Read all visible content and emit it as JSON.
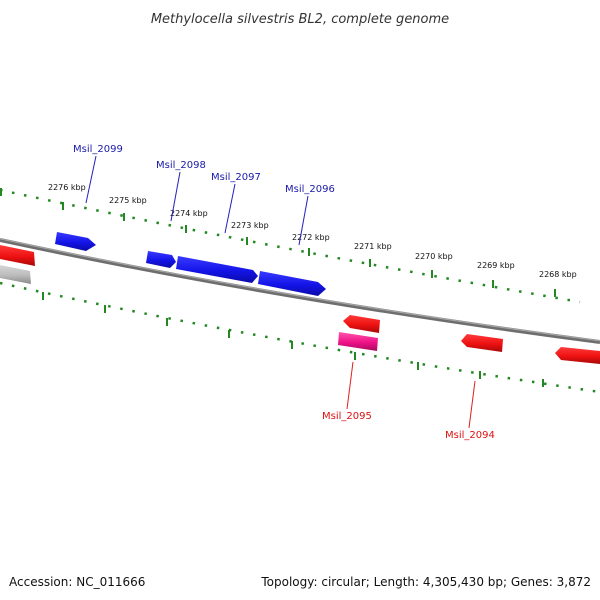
{
  "title": "Methylocella silvestris BL2, complete genome",
  "footer": {
    "accession": "Accession: NC_011666",
    "summary": "Topology: circular; Length: 4,305,430 bp; Genes: 3,872"
  },
  "colors": {
    "forward_gene": "#1a1af0",
    "reverse_gene": "#ee1111",
    "highlight_gene": "#ee1188",
    "grey_gene": "#bbbbbb",
    "backbone": "#7a7a7a",
    "tick": "#228822",
    "forward_label": "#1a1aaa",
    "reverse_label": "#dd1111"
  },
  "ticks": {
    "upper_labels": [
      "2276 kbp",
      "2275 kbp",
      "2274 kbp",
      "2273 kbp",
      "2272 kbp",
      "2271 kbp",
      "2270 kbp",
      "2269 kbp",
      "2268 kbp"
    ]
  },
  "genes": {
    "forward_labels": [
      "Msil_2099",
      "Msil_2098",
      "Msil_2097",
      "Msil_2096"
    ],
    "reverse_labels": [
      "Msil_2095",
      "Msil_2094"
    ]
  }
}
